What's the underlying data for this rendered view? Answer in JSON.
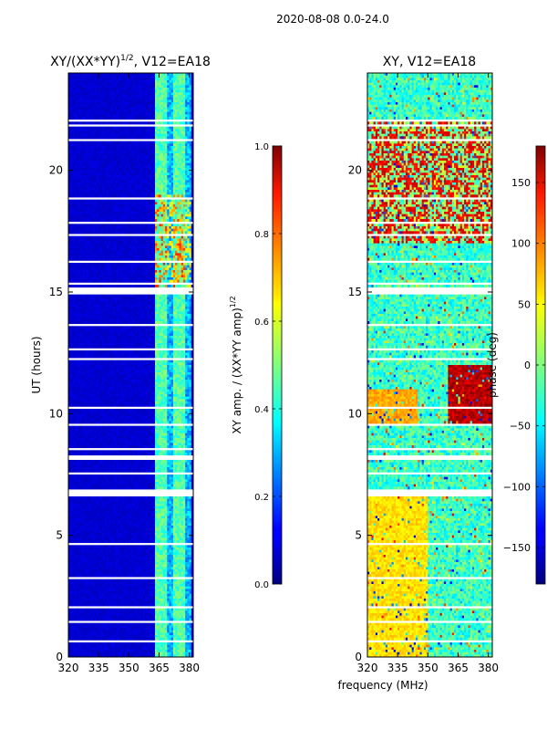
{
  "figure": {
    "suptitle": "2020-08-08 0.0-24.0"
  },
  "chart_data": [
    {
      "type": "heatmap",
      "panel": "left",
      "title_prefix": "XY/(XX*YY)",
      "title_sup": "1/2",
      "title_suffix": ", V12=EA18",
      "xlabel": "",
      "ylabel": "UT (hours)",
      "xlim": [
        320,
        382
      ],
      "ylim": [
        0,
        24
      ],
      "xticks": [
        320,
        335,
        350,
        365,
        380
      ],
      "yticks": [
        0,
        5,
        10,
        15,
        20
      ],
      "colorbar": {
        "label_prefix": "XY amp. / (XX*YY amp)",
        "label_sup": "1/2",
        "range": [
          0.0,
          1.0
        ],
        "ticks": [
          "0.0",
          "0.2",
          "0.4",
          "0.6",
          "0.8",
          "1.0"
        ],
        "colormap": "jet"
      },
      "description_of_values": "mostly ~0.0-0.1 below 364 MHz; 0.3-0.8 in 364-381 MHz band, highest (~0.8) between 15-19 UT",
      "flagged_ut_bands": [
        [
          0.6,
          0.7
        ],
        [
          1.4,
          1.5
        ],
        [
          2.0,
          2.1
        ],
        [
          2.3,
          2.35
        ],
        [
          3.2,
          3.25
        ],
        [
          4.3,
          4.35
        ],
        [
          4.6,
          4.65
        ],
        [
          6.6,
          6.9
        ],
        [
          7.5,
          7.6
        ],
        [
          8.1,
          8.25
        ],
        [
          8.5,
          8.6
        ],
        [
          9.5,
          9.55
        ],
        [
          10.2,
          10.3
        ],
        [
          12.2,
          12.3
        ],
        [
          12.6,
          12.7
        ],
        [
          13.6,
          13.7
        ],
        [
          14.9,
          15.2
        ],
        [
          15.3,
          15.4
        ],
        [
          16.2,
          16.3
        ],
        [
          17.3,
          17.35
        ],
        [
          17.8,
          17.9
        ],
        [
          18.8,
          18.9
        ],
        [
          21.2,
          21.3
        ],
        [
          21.8,
          21.9
        ],
        [
          22.0,
          22.1
        ]
      ]
    },
    {
      "type": "heatmap",
      "panel": "right",
      "title": "XY, V12=EA18",
      "xlabel": "frequency (MHz)",
      "ylabel": "",
      "xlim": [
        320,
        382
      ],
      "ylim": [
        0,
        24
      ],
      "xticks": [
        320,
        335,
        350,
        365,
        380
      ],
      "yticks": [
        0,
        5,
        10,
        15,
        20
      ],
      "colorbar": {
        "label": "phase (deg)",
        "range": [
          -180,
          180
        ],
        "ticks": [
          "150",
          "100",
          "50",
          "0",
          "−50",
          "−100",
          "−150"
        ],
        "tick_values": [
          150,
          100,
          50,
          0,
          -50,
          -100,
          -150
        ],
        "colormap": "jet"
      },
      "description_of_values": "noisy phase pattern; ~+40 to +60 deg (yellow) below 350 MHz at 0-7 UT; 0 to -60 deg (cyan/blue) elsewhere; strong red/orange streaks near 18-22 UT and 10-12 UT",
      "flagged_ut_bands": [
        [
          0.6,
          0.7
        ],
        [
          1.4,
          1.5
        ],
        [
          2.0,
          2.1
        ],
        [
          2.3,
          2.35
        ],
        [
          3.2,
          3.25
        ],
        [
          4.3,
          4.35
        ],
        [
          4.6,
          4.65
        ],
        [
          6.6,
          6.9
        ],
        [
          7.5,
          7.6
        ],
        [
          8.1,
          8.25
        ],
        [
          8.5,
          8.6
        ],
        [
          9.5,
          9.55
        ],
        [
          10.2,
          10.3
        ],
        [
          12.2,
          12.3
        ],
        [
          12.6,
          12.7
        ],
        [
          13.6,
          13.7
        ],
        [
          14.9,
          15.2
        ],
        [
          15.3,
          15.4
        ],
        [
          16.2,
          16.3
        ],
        [
          17.3,
          17.35
        ],
        [
          17.8,
          17.9
        ],
        [
          18.8,
          18.9
        ],
        [
          21.2,
          21.3
        ],
        [
          21.8,
          21.9
        ],
        [
          22.0,
          22.1
        ]
      ]
    }
  ]
}
